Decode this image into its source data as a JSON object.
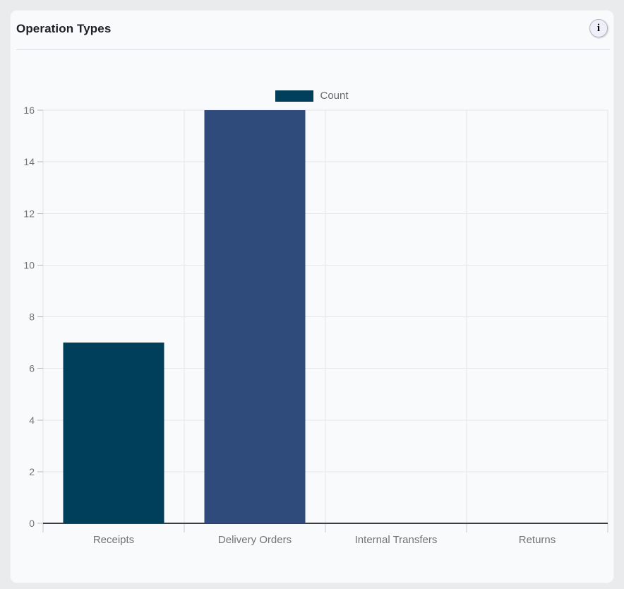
{
  "header": {
    "title": "Operation Types",
    "info_glyph": "i"
  },
  "chart_data": {
    "type": "bar",
    "title": "Operation Types",
    "categories": [
      "Receipts",
      "Delivery Orders",
      "Internal Transfers",
      "Returns"
    ],
    "series": [
      {
        "name": "Count",
        "values": [
          7,
          16,
          0,
          0
        ]
      }
    ],
    "bar_colors": [
      "#003f5c",
      "#2f4b7c",
      null,
      null
    ],
    "legend_swatch_color": "#003f5c",
    "ylim": [
      0,
      16
    ],
    "yticks": [
      0,
      2,
      4,
      6,
      8,
      10,
      12,
      14,
      16
    ],
    "grid": true,
    "legend_position": "top-center",
    "xlabel": "",
    "ylabel": ""
  },
  "colors": {
    "page_background": "#eaebed",
    "card_background": "#f9fafb",
    "gridline": "#e6e7e9",
    "axis_line": "#3c3e41",
    "tick_label": "#737373",
    "legend_text": "#66696c"
  }
}
